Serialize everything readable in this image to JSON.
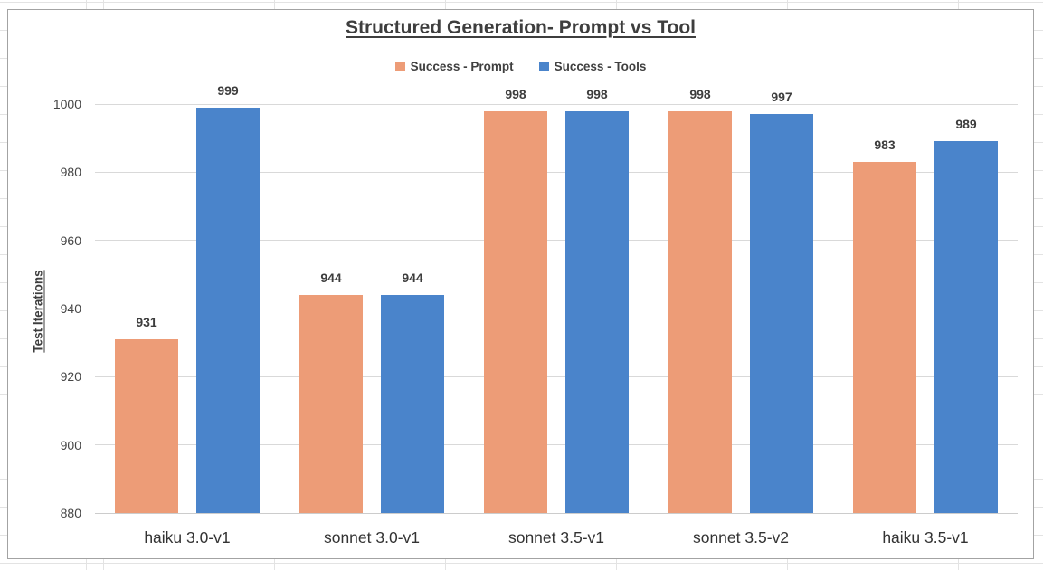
{
  "chart_data": {
    "type": "bar",
    "title": "Structured Generation- Prompt vs Tool",
    "ylabel": "Test Iterations",
    "xlabel": "",
    "categories": [
      "haiku 3.0-v1",
      "sonnet 3.0-v1",
      "sonnet 3.5-v1",
      "sonnet 3.5-v2",
      "haiku 3.5-v1"
    ],
    "series": [
      {
        "name": "Success - Prompt",
        "color": "#ED9C77",
        "values": [
          931,
          944,
          998,
          998,
          983
        ]
      },
      {
        "name": "Success - Tools",
        "color": "#4A84CB",
        "values": [
          999,
          944,
          998,
          997,
          989
        ]
      }
    ],
    "ylim": [
      880,
      1000
    ],
    "yticks": [
      880,
      900,
      920,
      940,
      960,
      980,
      1000
    ],
    "grid": true,
    "legend_position": "top-center",
    "data_labels": true,
    "colors": {
      "title_text": "#3e3e3e",
      "axis_text": "#454545",
      "category_text": "#333333",
      "gridline": "#d9d9d9",
      "chart_border": "#a3a3a3",
      "spreadsheet_gridline": "#e3e3e3"
    }
  }
}
